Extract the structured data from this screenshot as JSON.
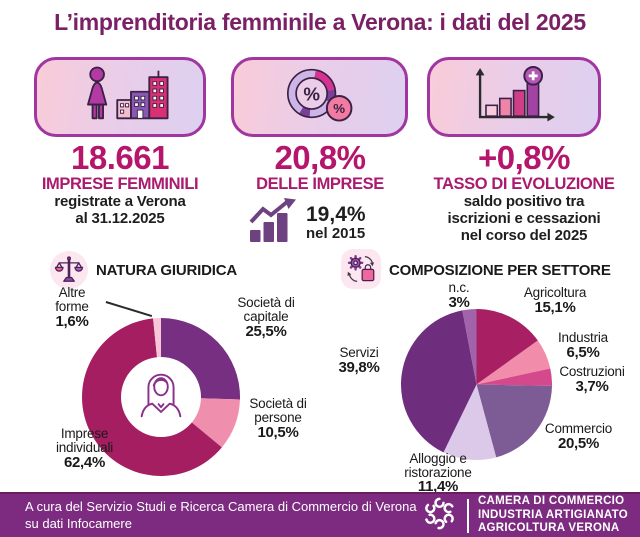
{
  "title": "L’imprenditoria femminile a Verona: i dati del 2025",
  "stats": [
    {
      "value": "18.661",
      "label": "IMPRESE FEMMINILI",
      "desc": "registrate a Verona\nal 31.12.2025"
    },
    {
      "value": "20,8%",
      "label": "DELLE IMPRESE",
      "sub_value": "19,4%",
      "sub_label": "nel 2015"
    },
    {
      "value": "+0,8%",
      "label": "TASSO DI EVOLUZIONE",
      "desc": "saldo positivo tra\niscrizioni e cessazioni\nnel corso del 2025"
    }
  ],
  "chart_data": [
    {
      "type": "pie",
      "variant": "donut",
      "title": "NATURA GIURIDICA",
      "slices": [
        {
          "label": "Società di capitale",
          "value": 25.5,
          "display": "25,5%",
          "color": "#772f81"
        },
        {
          "label": "Società di persone",
          "value": 10.5,
          "display": "10,5%",
          "color": "#f08fad"
        },
        {
          "label": "Imprese individuali",
          "value": 62.4,
          "display": "62,4%",
          "color": "#a61e62"
        },
        {
          "label": "Altre forme",
          "value": 1.6,
          "display": "1,6%",
          "color": "#f7c7d8"
        }
      ]
    },
    {
      "type": "pie",
      "variant": "pie",
      "title": "COMPOSIZIONE PER SETTORE",
      "slices": [
        {
          "label": "Agricoltura",
          "value": 15.1,
          "display": "15,1%",
          "color": "#a81f64"
        },
        {
          "label": "Industria",
          "value": 6.5,
          "display": "6,5%",
          "color": "#f18cab"
        },
        {
          "label": "Costruzioni",
          "value": 3.7,
          "display": "3,7%",
          "color": "#d4498c"
        },
        {
          "label": "Commercio",
          "value": 20.5,
          "display": "20,5%",
          "color": "#7d5c95"
        },
        {
          "label": "Alloggio e ristorazione",
          "value": 11.4,
          "display": "11,4%",
          "color": "#dcc8e8"
        },
        {
          "label": "Servizi",
          "value": 39.8,
          "display": "39,8%",
          "color": "#6f2d7e"
        },
        {
          "label": "n.c.",
          "value": 3.0,
          "display": "3%",
          "color": "#a263aa"
        }
      ]
    }
  ],
  "footer": {
    "credit_line1": "A cura del Servizio Studi e Ricerca Camera di Commercio di Verona",
    "credit_line2": "su dati Infocamere",
    "org_line1": "CAMERA DI COMMERCIO",
    "org_line2": "INDUSTRIA ARTIGIANATO",
    "org_line3": "AGRICOLTURA VERONA"
  },
  "colors": {
    "title": "#7a2166",
    "stat_value": "#b5156b",
    "stat_label": "#aa1b70",
    "card_border": "#a136a0",
    "footer_bg": "#7d2b80"
  },
  "icons": {
    "card1": "woman-with-buildings",
    "card2": "percent-donut",
    "card3": "growth-bars-plus",
    "substat": "trend-arrow-bars",
    "left_chart_header": "scales",
    "right_chart_header": "gear-shopping-bag",
    "donut_center": "businesswoman-avatar",
    "footer_logo": "camcom-spiral-logo"
  }
}
